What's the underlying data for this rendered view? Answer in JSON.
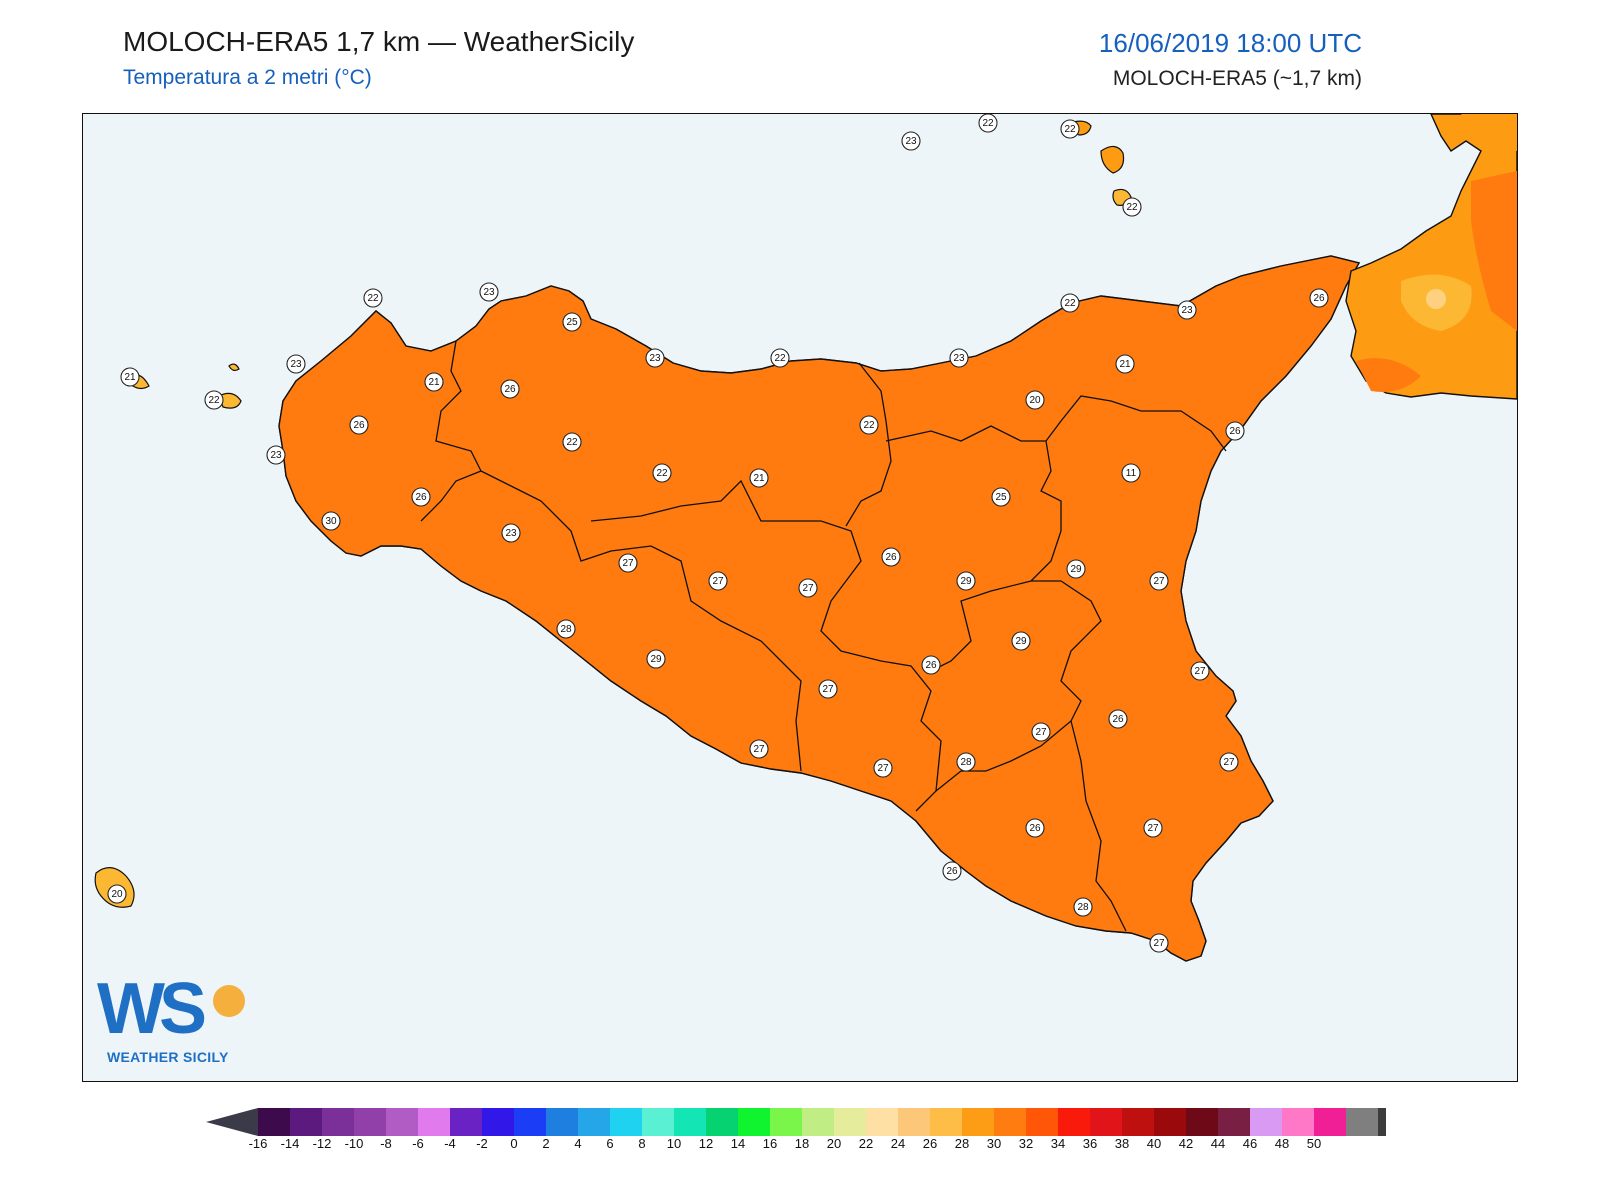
{
  "header": {
    "title": "MOLOCH-ERA5 1,7 km — WeatherSicily",
    "subtitle": "Temperatura a 2 metri (°C)",
    "valid_time": "16/06/2019 18:00 UTC",
    "model": "MOLOCH-ERA5 (~1,7 km)"
  },
  "logo": {
    "letters": "WS",
    "name": "WEATHER SICILY"
  },
  "colors": {
    "sea": "#edf5f9",
    "t20": "#fed181",
    "t22": "#fdb833",
    "t24": "#fd9c13",
    "t26": "#ff7b10",
    "t28": "#ff5407",
    "t30": "#f02a10",
    "t32": "#dc1218",
    "label_blue": "#1560bd"
  },
  "colorbar": {
    "ticks": [
      "-16",
      "-14",
      "-12",
      "-10",
      "-8",
      "-6",
      "-4",
      "-2",
      "0",
      "2",
      "4",
      "6",
      "8",
      "10",
      "12",
      "14",
      "16",
      "18",
      "20",
      "22",
      "24",
      "26",
      "28",
      "30",
      "32",
      "34",
      "36",
      "38",
      "40",
      "42",
      "44",
      "46",
      "48",
      "50"
    ],
    "colors": [
      "#3d0b4c",
      "#5c1a7f",
      "#7a2f99",
      "#9040a8",
      "#b05cc4",
      "#e07aed",
      "#6a22c4",
      "#3218e8",
      "#1a3df5",
      "#1f7fe0",
      "#24a6e8",
      "#1fd2f0",
      "#5af0d4",
      "#13e6b4",
      "#07d272",
      "#0ff42e",
      "#7af64a",
      "#c0ee84",
      "#e5ec9c",
      "#ffe0a4",
      "#fdc77a",
      "#fdbd46",
      "#fd9d15",
      "#ff7c10",
      "#ff5608",
      "#fa1a0c",
      "#e1141a",
      "#bf1010",
      "#9a0a0c",
      "#6e0a18",
      "#7a1f44",
      "#d89af2",
      "#ff78c8",
      "#f01f96",
      "#7f7f7f",
      "#3c3c3c"
    ]
  },
  "stations": [
    {
      "v": "23"
    },
    {
      "v": "22"
    },
    {
      "v": "22"
    },
    {
      "v": "22"
    },
    {
      "v": "22"
    },
    {
      "v": "23"
    },
    {
      "v": "25"
    },
    {
      "v": "23"
    },
    {
      "v": "22"
    },
    {
      "v": "23"
    },
    {
      "v": "22"
    },
    {
      "v": "23"
    },
    {
      "v": "26"
    },
    {
      "v": "21"
    },
    {
      "v": "22"
    },
    {
      "v": "23"
    },
    {
      "v": "21"
    },
    {
      "v": "26"
    },
    {
      "v": "21"
    },
    {
      "v": "20"
    },
    {
      "v": "26"
    },
    {
      "v": "22"
    },
    {
      "v": "22"
    },
    {
      "v": "26"
    },
    {
      "v": "23"
    },
    {
      "v": "22"
    },
    {
      "v": "21"
    },
    {
      "v": "11"
    },
    {
      "v": "26"
    },
    {
      "v": "25"
    },
    {
      "v": "30"
    },
    {
      "v": "23"
    },
    {
      "v": "27"
    },
    {
      "v": "27"
    },
    {
      "v": "27"
    },
    {
      "v": "26"
    },
    {
      "v": "29"
    },
    {
      "v": "29"
    },
    {
      "v": "27"
    },
    {
      "v": "28"
    },
    {
      "v": "29"
    },
    {
      "v": "29"
    },
    {
      "v": "26"
    },
    {
      "v": "27"
    },
    {
      "v": "27"
    },
    {
      "v": "26"
    },
    {
      "v": "27"
    },
    {
      "v": "27"
    },
    {
      "v": "28"
    },
    {
      "v": "27"
    },
    {
      "v": "27"
    },
    {
      "v": "26"
    },
    {
      "v": "27"
    },
    {
      "v": "26"
    },
    {
      "v": "28"
    },
    {
      "v": "27"
    },
    {
      "v": "20"
    }
  ]
}
